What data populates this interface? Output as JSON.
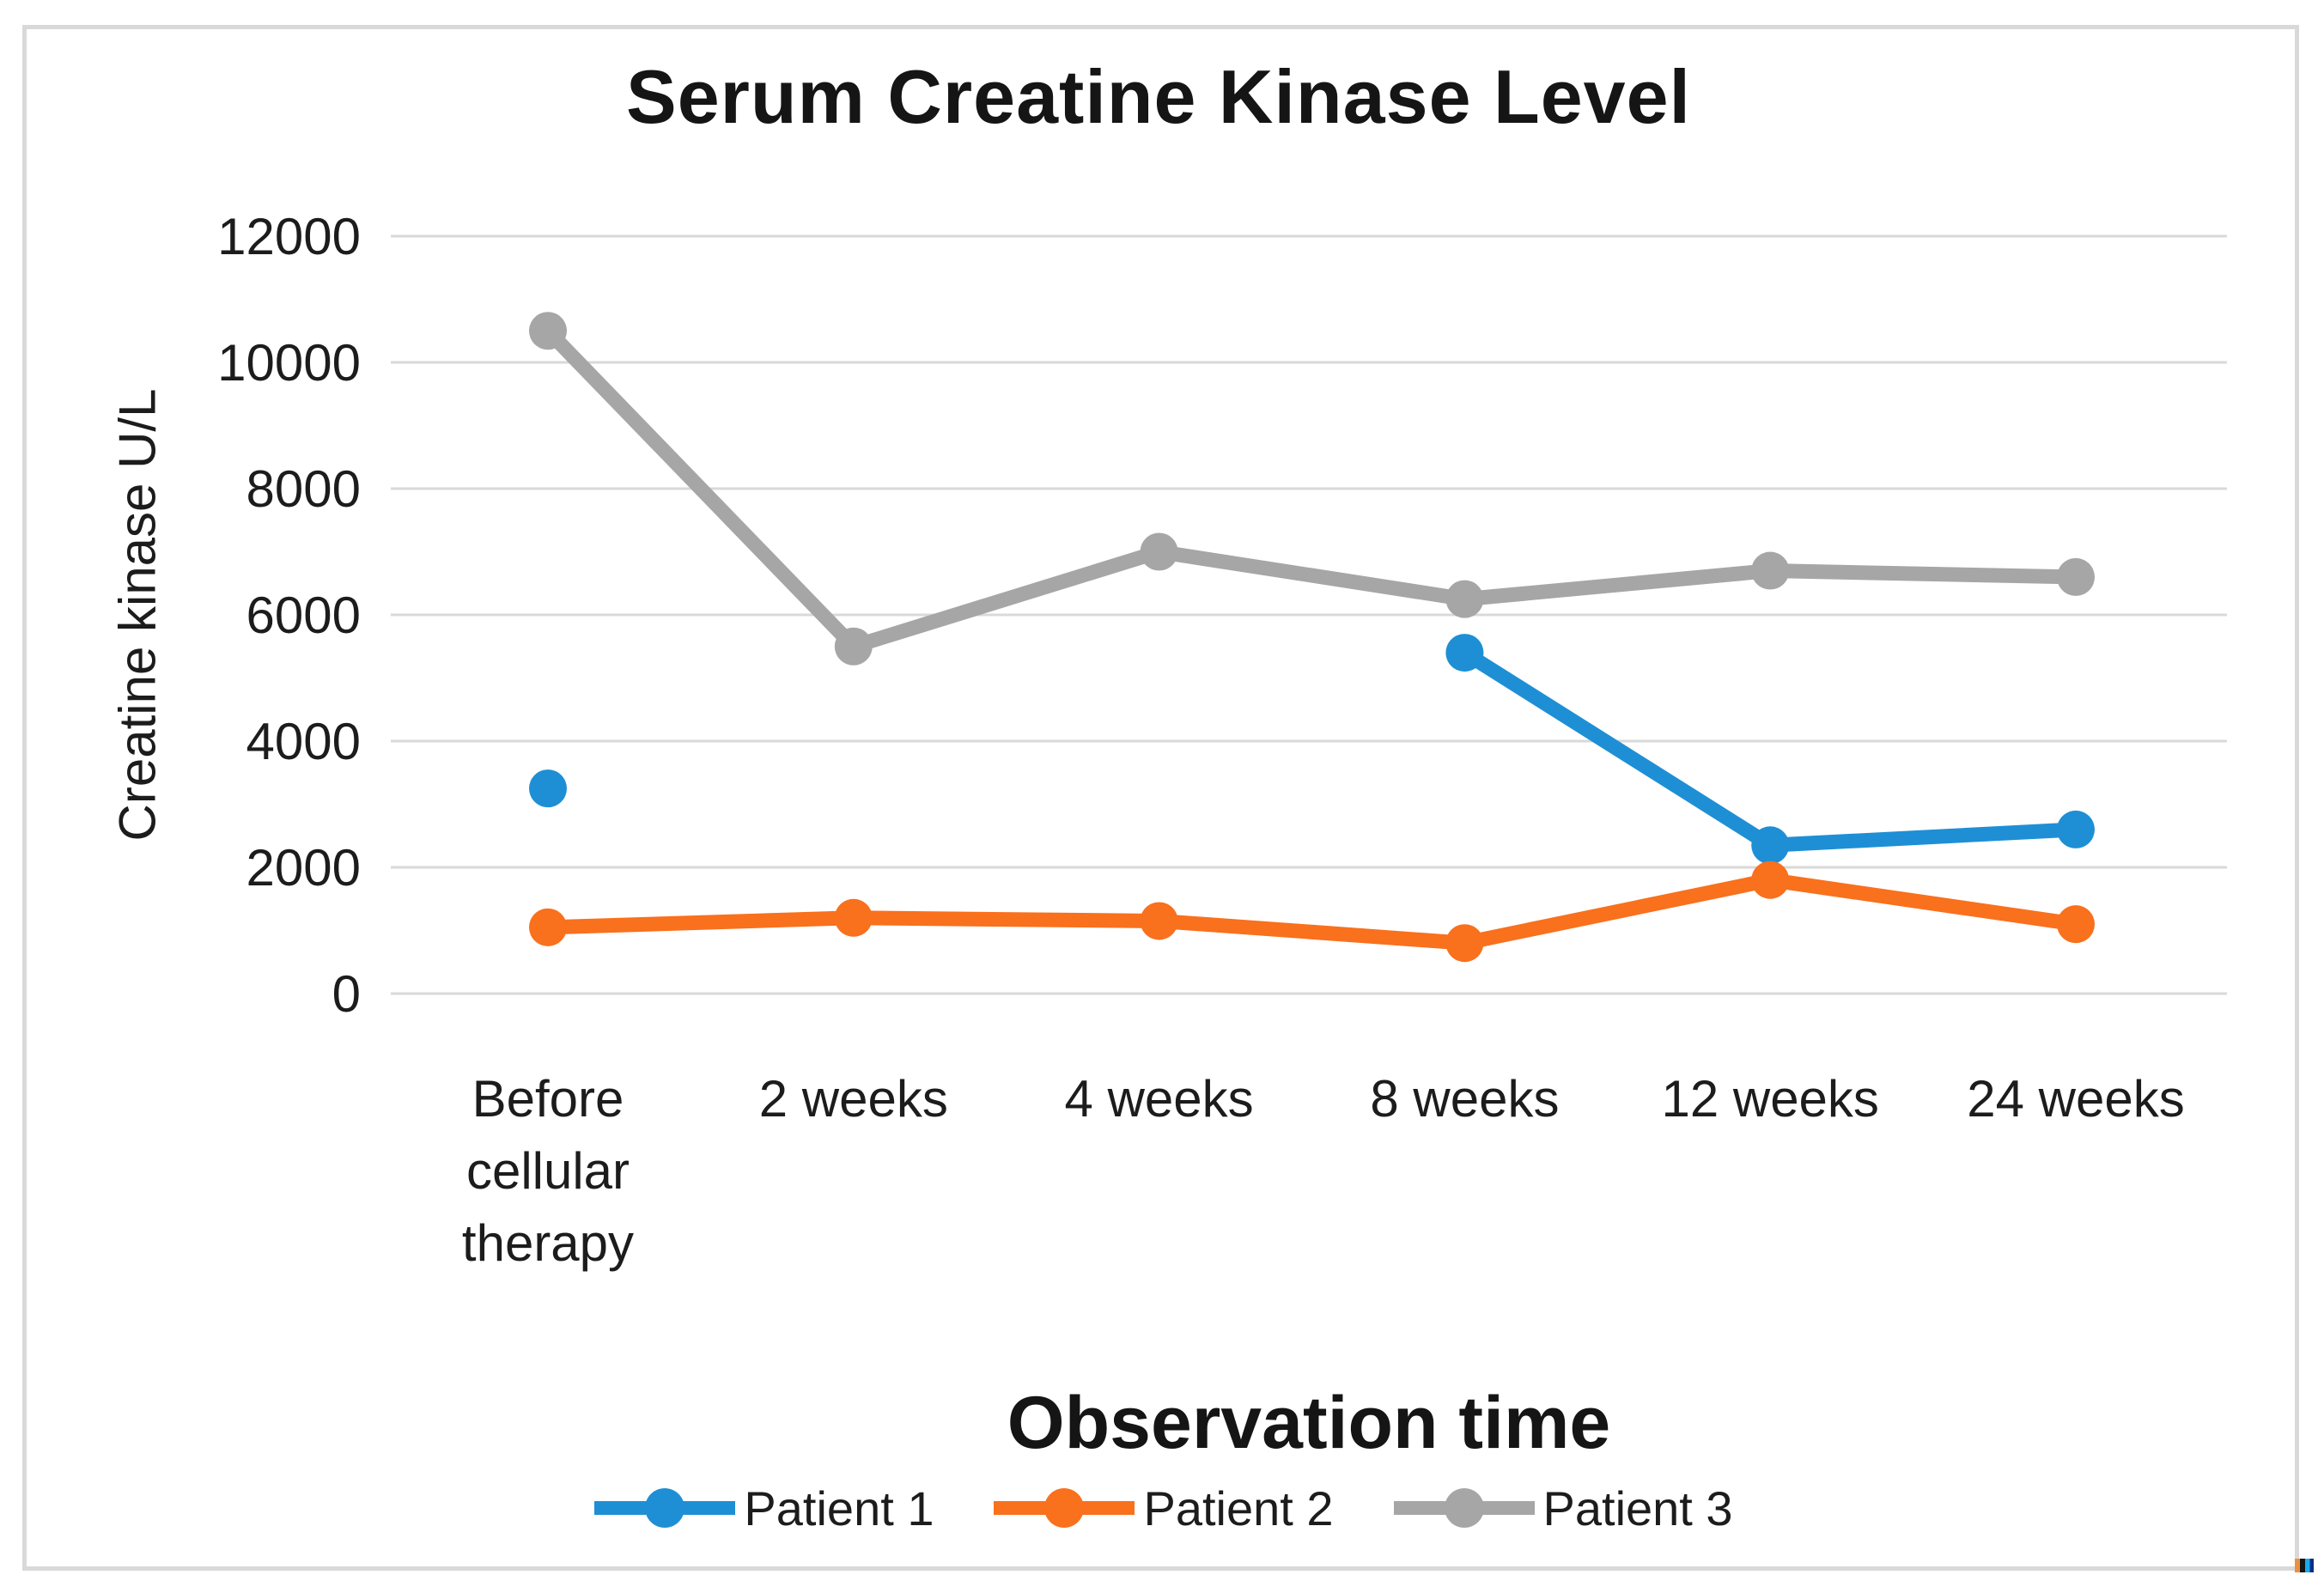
{
  "chart_data": {
    "type": "line",
    "title": "Serum Creatine Kinase Level",
    "xlabel": "Observation time",
    "ylabel": "Creatine kinase U/L",
    "categories": [
      "Before cellular therapy",
      "2 weeks",
      "4 weeks",
      "8 weeks",
      "12 weeks",
      "24 weeks"
    ],
    "series": [
      {
        "name": "Patient 1",
        "color": "#1E8FD5",
        "values": [
          3250,
          null,
          null,
          5400,
          2350,
          2600
        ]
      },
      {
        "name": "Patient 2",
        "color": "#F9701D",
        "values": [
          1050,
          1200,
          1150,
          800,
          1800,
          1100
        ]
      },
      {
        "name": "Patient 3",
        "color": "#A6A6A6",
        "values": [
          10500,
          5500,
          7000,
          6250,
          6700,
          6600
        ]
      }
    ],
    "ylim": [
      0,
      12000
    ],
    "yticks": [
      0,
      2000,
      4000,
      6000,
      8000,
      10000,
      12000
    ],
    "grid": true,
    "gridline_color": "#D9D9D9",
    "legend_position": "bottom",
    "marker": "circle"
  },
  "colors": {
    "background": "#FFFFFF",
    "frame_border": "#D9D9D9",
    "text": "#1C1C1C"
  }
}
